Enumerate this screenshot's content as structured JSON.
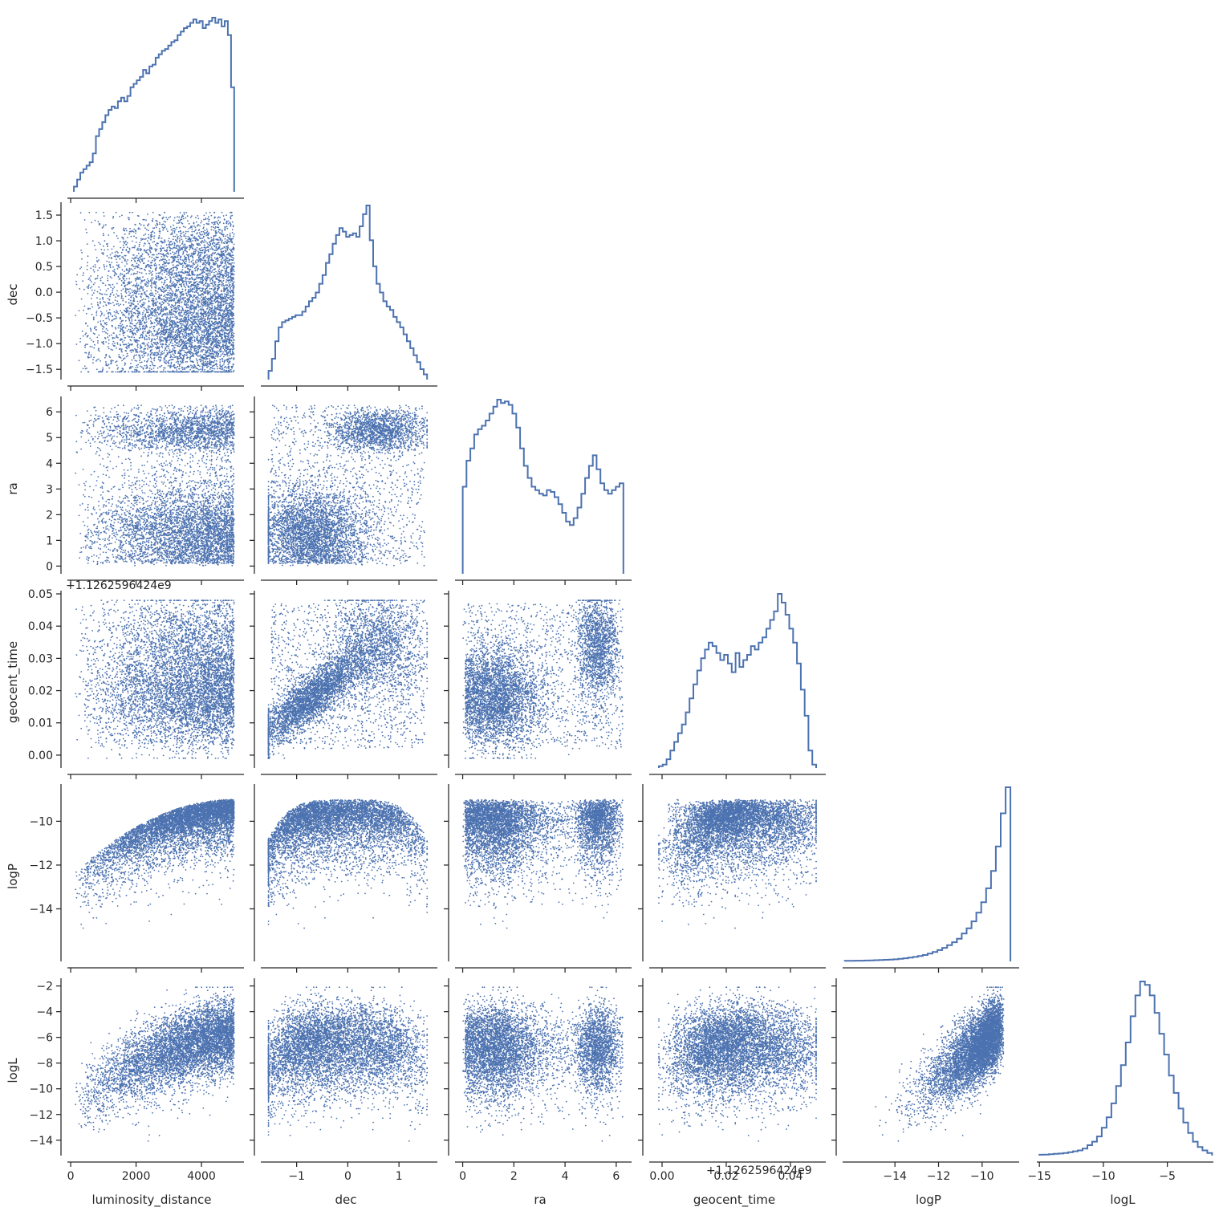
{
  "chart_data": {
    "type": "scatter",
    "title": "",
    "variables": [
      "luminosity_distance",
      "dec",
      "ra",
      "geocent_time",
      "logP",
      "logL"
    ],
    "x_axis_labels": [
      "luminosity_distance",
      "dec",
      "ra",
      "geocent_time",
      "logP",
      "logL"
    ],
    "y_axis_labels": [
      "",
      "dec",
      "ra",
      "geocent_time",
      "logP",
      "logL"
    ],
    "geocent_time_offset_label": "+1.1262596424e9",
    "series_color": "#4c72b0",
    "ranges": {
      "luminosity_distance": [
        -100,
        5300
      ],
      "dec": [
        -1.7,
        1.75
      ],
      "ra": [
        -0.3,
        6.6
      ],
      "geocent_time": [
        -0.004,
        0.051
      ],
      "logP": [
        -16.4,
        -8.3
      ],
      "logL": [
        -15.2,
        -1.4
      ]
    },
    "ticks": {
      "luminosity_distance": {
        "values": [
          0,
          2000,
          4000
        ],
        "labels": [
          "0",
          "2000",
          "4000"
        ]
      },
      "dec": {
        "values": [
          -1,
          0,
          1
        ],
        "labels": [
          "−1",
          "0",
          "1"
        ]
      },
      "dec_y": {
        "values": [
          -1.5,
          -1.0,
          -0.5,
          0.0,
          0.5,
          1.0,
          1.5
        ],
        "labels": [
          "−1.5",
          "−1.0",
          "−0.5",
          "0.0",
          "0.5",
          "1.0",
          "1.5"
        ]
      },
      "ra": {
        "values": [
          0,
          2,
          4,
          6
        ],
        "labels": [
          "0",
          "2",
          "4",
          "6"
        ]
      },
      "ra_y": {
        "values": [
          0,
          1,
          2,
          3,
          4,
          5,
          6
        ],
        "labels": [
          "0",
          "1",
          "2",
          "3",
          "4",
          "5",
          "6"
        ]
      },
      "geocent_time": {
        "values": [
          0.0,
          0.02,
          0.04
        ],
        "labels": [
          "0.00",
          "0.02",
          "0.04"
        ]
      },
      "geocent_time_y": {
        "values": [
          0.0,
          0.01,
          0.02,
          0.03,
          0.04,
          0.05
        ],
        "labels": [
          "0.00",
          "0.01",
          "0.02",
          "0.03",
          "0.04",
          "0.05"
        ]
      },
      "logP": {
        "values": [
          -14,
          -12,
          -10
        ],
        "labels": [
          "−14",
          "−12",
          "−10"
        ]
      },
      "logP_y": {
        "values": [
          -14,
          -12,
          -10
        ],
        "labels": [
          "−14",
          "−12",
          "−10"
        ]
      },
      "logL": {
        "values": [
          -15,
          -10,
          -5
        ],
        "labels": [
          "−15",
          "−10",
          "−5"
        ]
      },
      "logL_y": {
        "values": [
          -14,
          -12,
          -10,
          -8,
          -6,
          -4,
          -2
        ],
        "labels": [
          "−14",
          "−12",
          "−10",
          "−8",
          "−6",
          "−4",
          "−2"
        ]
      }
    },
    "histograms": {
      "luminosity_distance": {
        "edges": [
          100,
          5000
        ],
        "counts": [
          0.03,
          0.07,
          0.11,
          0.13,
          0.15,
          0.17,
          0.22,
          0.32,
          0.36,
          0.4,
          0.44,
          0.47,
          0.49,
          0.48,
          0.52,
          0.54,
          0.52,
          0.55,
          0.6,
          0.62,
          0.64,
          0.66,
          0.7,
          0.68,
          0.72,
          0.73,
          0.77,
          0.79,
          0.81,
          0.82,
          0.84,
          0.86,
          0.87,
          0.9,
          0.92,
          0.94,
          0.95,
          0.97,
          0.99,
          0.97,
          0.98,
          0.94,
          0.96,
          0.98,
          1.0,
          0.97,
          0.99,
          0.95,
          0.98,
          0.9,
          0.6
        ]
      },
      "dec": {
        "edges": [
          -1.55,
          1.55
        ],
        "counts": [
          0.05,
          0.12,
          0.22,
          0.3,
          0.33,
          0.34,
          0.35,
          0.36,
          0.37,
          0.37,
          0.39,
          0.42,
          0.45,
          0.47,
          0.5,
          0.55,
          0.6,
          0.67,
          0.72,
          0.78,
          0.83,
          0.87,
          0.85,
          0.82,
          0.83,
          0.84,
          0.82,
          0.88,
          0.95,
          1.0,
          0.8,
          0.65,
          0.55,
          0.5,
          0.45,
          0.42,
          0.4,
          0.36,
          0.33,
          0.3,
          0.26,
          0.22,
          0.18,
          0.14,
          0.1,
          0.06,
          0.03
        ]
      },
      "ra": {
        "edges": [
          0.0,
          6.28
        ],
        "counts": [
          0.5,
          0.65,
          0.72,
          0.8,
          0.83,
          0.85,
          0.88,
          0.92,
          0.96,
          1.0,
          0.98,
          0.99,
          0.97,
          0.92,
          0.84,
          0.72,
          0.62,
          0.55,
          0.5,
          0.48,
          0.46,
          0.45,
          0.48,
          0.47,
          0.44,
          0.4,
          0.35,
          0.3,
          0.28,
          0.32,
          0.38,
          0.46,
          0.55,
          0.62,
          0.68,
          0.6,
          0.52,
          0.48,
          0.46,
          0.48,
          0.5,
          0.52
        ]
      },
      "geocent_time": {
        "edges": [
          -0.001,
          0.048
        ],
        "counts": [
          0.01,
          0.02,
          0.05,
          0.1,
          0.15,
          0.2,
          0.25,
          0.32,
          0.4,
          0.48,
          0.56,
          0.63,
          0.68,
          0.72,
          0.7,
          0.66,
          0.62,
          0.65,
          0.6,
          0.55,
          0.66,
          0.58,
          0.62,
          0.65,
          0.7,
          0.68,
          0.72,
          0.75,
          0.8,
          0.85,
          0.9,
          1.0,
          0.95,
          0.88,
          0.8,
          0.72,
          0.6,
          0.45,
          0.3,
          0.1,
          0.02
        ]
      },
      "logP": {
        "edges": [
          -16.3,
          -8.7
        ],
        "counts": [
          0.003,
          0.003,
          0.004,
          0.004,
          0.005,
          0.006,
          0.007,
          0.008,
          0.009,
          0.01,
          0.012,
          0.015,
          0.018,
          0.022,
          0.026,
          0.031,
          0.037,
          0.045,
          0.054,
          0.065,
          0.078,
          0.093,
          0.11,
          0.13,
          0.16,
          0.19,
          0.23,
          0.28,
          0.34,
          0.42,
          0.52,
          0.66,
          0.85,
          1.0
        ]
      },
      "logL": {
        "edges": [
          -15.0,
          -1.5
        ],
        "counts": [
          0.005,
          0.006,
          0.008,
          0.01,
          0.012,
          0.015,
          0.02,
          0.025,
          0.03,
          0.04,
          0.06,
          0.08,
          0.11,
          0.16,
          0.22,
          0.3,
          0.4,
          0.52,
          0.65,
          0.8,
          0.92,
          1.0,
          0.98,
          0.92,
          0.82,
          0.7,
          0.58,
          0.46,
          0.36,
          0.27,
          0.19,
          0.13,
          0.08,
          0.05,
          0.03,
          0.015
        ]
      }
    },
    "num_samples_per_panel": 6000
  }
}
